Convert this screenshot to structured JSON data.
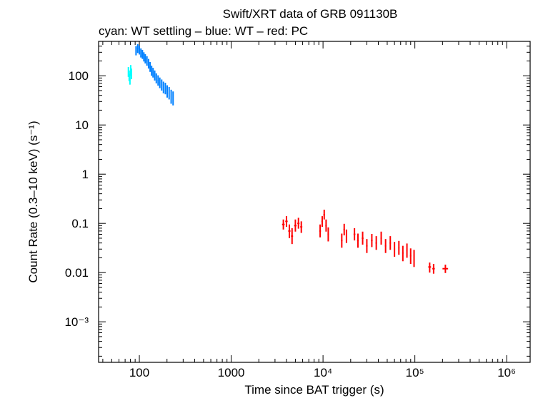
{
  "chart_data": {
    "type": "scatter",
    "title": "Swift/XRT data of GRB 091130B",
    "subtitle": "cyan: WT settling – blue: WT – red: PC",
    "xlabel": "Time since BAT trigger (s)",
    "ylabel": "Count Rate (0.3–10 keV) (s⁻¹)",
    "xscale": "log",
    "yscale": "log",
    "xlim": [
      36,
      1800000
    ],
    "ylim": [
      0.00015,
      500
    ],
    "x_ticks": [
      {
        "value": 100,
        "label": "100"
      },
      {
        "value": 1000,
        "label": "1000"
      },
      {
        "value": 10000,
        "label": "10⁴"
      },
      {
        "value": 100000,
        "label": "10⁵"
      },
      {
        "value": 1000000,
        "label": "10⁶"
      }
    ],
    "y_ticks": [
      {
        "value": 100,
        "label": "100"
      },
      {
        "value": 10,
        "label": "10"
      },
      {
        "value": 1,
        "label": "1"
      },
      {
        "value": 0.1,
        "label": "0.1"
      },
      {
        "value": 0.01,
        "label": "0.01"
      },
      {
        "value": 0.001,
        "label": "10⁻³"
      }
    ],
    "grid": false,
    "series": [
      {
        "name": "WT settling",
        "color": "#00ffff",
        "points": [
          {
            "x": 76,
            "y": 120,
            "xerr": 1,
            "ylo": 95,
            "yhi": 150
          },
          {
            "x": 77.5,
            "y": 100,
            "xerr": 1,
            "ylo": 78,
            "yhi": 128
          },
          {
            "x": 79,
            "y": 85,
            "xerr": 1,
            "ylo": 66,
            "yhi": 110
          },
          {
            "x": 80.5,
            "y": 130,
            "xerr": 1,
            "ylo": 100,
            "yhi": 165
          },
          {
            "x": 82,
            "y": 110,
            "xerr": 1,
            "ylo": 85,
            "yhi": 140
          }
        ]
      },
      {
        "name": "WT",
        "color": "#0080ff",
        "points": [
          {
            "x": 92,
            "y": 320,
            "xerr": 1.5,
            "ylo": 260,
            "yhi": 400
          },
          {
            "x": 96,
            "y": 360,
            "xerr": 1.5,
            "ylo": 290,
            "yhi": 440
          },
          {
            "x": 100,
            "y": 330,
            "xerr": 1.5,
            "ylo": 270,
            "yhi": 410
          },
          {
            "x": 104,
            "y": 290,
            "xerr": 1.5,
            "ylo": 235,
            "yhi": 360
          },
          {
            "x": 108,
            "y": 270,
            "xerr": 1.5,
            "ylo": 220,
            "yhi": 335
          },
          {
            "x": 112,
            "y": 240,
            "xerr": 1.5,
            "ylo": 195,
            "yhi": 300
          },
          {
            "x": 116,
            "y": 220,
            "xerr": 2,
            "ylo": 178,
            "yhi": 275
          },
          {
            "x": 121,
            "y": 200,
            "xerr": 2,
            "ylo": 160,
            "yhi": 250
          },
          {
            "x": 126,
            "y": 175,
            "xerr": 2,
            "ylo": 140,
            "yhi": 220
          },
          {
            "x": 131,
            "y": 150,
            "xerr": 2,
            "ylo": 120,
            "yhi": 190
          },
          {
            "x": 136,
            "y": 125,
            "xerr": 2,
            "ylo": 100,
            "yhi": 160
          },
          {
            "x": 141,
            "y": 115,
            "xerr": 2,
            "ylo": 92,
            "yhi": 145
          },
          {
            "x": 147,
            "y": 100,
            "xerr": 2,
            "ylo": 80,
            "yhi": 128
          },
          {
            "x": 153,
            "y": 88,
            "xerr": 2,
            "ylo": 70,
            "yhi": 112
          },
          {
            "x": 160,
            "y": 80,
            "xerr": 2.5,
            "ylo": 63,
            "yhi": 102
          },
          {
            "x": 167,
            "y": 72,
            "xerr": 2.5,
            "ylo": 56,
            "yhi": 92
          },
          {
            "x": 175,
            "y": 65,
            "xerr": 2.5,
            "ylo": 50,
            "yhi": 84
          },
          {
            "x": 183,
            "y": 58,
            "xerr": 2.5,
            "ylo": 44,
            "yhi": 76
          },
          {
            "x": 192,
            "y": 55,
            "xerr": 3,
            "ylo": 42,
            "yhi": 72
          },
          {
            "x": 201,
            "y": 48,
            "xerr": 3,
            "ylo": 36,
            "yhi": 64
          },
          {
            "x": 211,
            "y": 44,
            "xerr": 3,
            "ylo": 33,
            "yhi": 59
          },
          {
            "x": 222,
            "y": 38,
            "xerr": 3,
            "ylo": 27,
            "yhi": 52
          },
          {
            "x": 233,
            "y": 35,
            "xerr": 3,
            "ylo": 25,
            "yhi": 48
          }
        ]
      },
      {
        "name": "PC",
        "color": "#ff0000",
        "points": [
          {
            "x": 3700,
            "y": 0.095,
            "xerr": 120,
            "ylo": 0.075,
            "yhi": 0.12
          },
          {
            "x": 4000,
            "y": 0.11,
            "xerr": 120,
            "ylo": 0.085,
            "yhi": 0.14
          },
          {
            "x": 4300,
            "y": 0.07,
            "xerr": 120,
            "ylo": 0.05,
            "yhi": 0.095
          },
          {
            "x": 4600,
            "y": 0.055,
            "xerr": 120,
            "ylo": 0.038,
            "yhi": 0.08
          },
          {
            "x": 5000,
            "y": 0.09,
            "xerr": 150,
            "ylo": 0.068,
            "yhi": 0.12
          },
          {
            "x": 5400,
            "y": 0.1,
            "xerr": 150,
            "ylo": 0.078,
            "yhi": 0.13
          },
          {
            "x": 5800,
            "y": 0.085,
            "xerr": 150,
            "ylo": 0.064,
            "yhi": 0.11
          },
          {
            "x": 9300,
            "y": 0.07,
            "xerr": 200,
            "ylo": 0.052,
            "yhi": 0.095
          },
          {
            "x": 9800,
            "y": 0.11,
            "xerr": 200,
            "ylo": 0.085,
            "yhi": 0.14
          },
          {
            "x": 10300,
            "y": 0.15,
            "xerr": 200,
            "ylo": 0.12,
            "yhi": 0.19
          },
          {
            "x": 10800,
            "y": 0.09,
            "xerr": 200,
            "ylo": 0.068,
            "yhi": 0.12
          },
          {
            "x": 11400,
            "y": 0.06,
            "xerr": 200,
            "ylo": 0.043,
            "yhi": 0.083
          },
          {
            "x": 16000,
            "y": 0.045,
            "xerr": 300,
            "ylo": 0.032,
            "yhi": 0.062
          },
          {
            "x": 17000,
            "y": 0.075,
            "xerr": 300,
            "ylo": 0.057,
            "yhi": 0.098
          },
          {
            "x": 18000,
            "y": 0.055,
            "xerr": 300,
            "ylo": 0.04,
            "yhi": 0.075
          },
          {
            "x": 22000,
            "y": 0.06,
            "xerr": 500,
            "ylo": 0.045,
            "yhi": 0.08
          },
          {
            "x": 24000,
            "y": 0.045,
            "xerr": 500,
            "ylo": 0.032,
            "yhi": 0.062
          },
          {
            "x": 27000,
            "y": 0.05,
            "xerr": 600,
            "ylo": 0.037,
            "yhi": 0.068
          },
          {
            "x": 30000,
            "y": 0.035,
            "xerr": 600,
            "ylo": 0.025,
            "yhi": 0.048
          },
          {
            "x": 34000,
            "y": 0.045,
            "xerr": 700,
            "ylo": 0.033,
            "yhi": 0.061
          },
          {
            "x": 38000,
            "y": 0.04,
            "xerr": 700,
            "ylo": 0.029,
            "yhi": 0.055
          },
          {
            "x": 43000,
            "y": 0.05,
            "xerr": 800,
            "ylo": 0.037,
            "yhi": 0.068
          },
          {
            "x": 48000,
            "y": 0.035,
            "xerr": 800,
            "ylo": 0.025,
            "yhi": 0.048
          },
          {
            "x": 54000,
            "y": 0.04,
            "xerr": 900,
            "ylo": 0.029,
            "yhi": 0.055
          },
          {
            "x": 60000,
            "y": 0.03,
            "xerr": 1000,
            "ylo": 0.021,
            "yhi": 0.042
          },
          {
            "x": 67000,
            "y": 0.032,
            "xerr": 1000,
            "ylo": 0.023,
            "yhi": 0.044
          },
          {
            "x": 74000,
            "y": 0.025,
            "xerr": 1200,
            "ylo": 0.017,
            "yhi": 0.035
          },
          {
            "x": 82000,
            "y": 0.028,
            "xerr": 1200,
            "ylo": 0.02,
            "yhi": 0.039
          },
          {
            "x": 90000,
            "y": 0.022,
            "xerr": 1500,
            "ylo": 0.015,
            "yhi": 0.031
          },
          {
            "x": 98000,
            "y": 0.02,
            "xerr": 1500,
            "ylo": 0.013,
            "yhi": 0.029
          },
          {
            "x": 145000,
            "y": 0.013,
            "xerr": 5000,
            "ylo": 0.01,
            "yhi": 0.016
          },
          {
            "x": 160000,
            "y": 0.012,
            "xerr": 5000,
            "ylo": 0.0095,
            "yhi": 0.015
          },
          {
            "x": 215000,
            "y": 0.012,
            "xerr": 15000,
            "ylo": 0.0098,
            "yhi": 0.0145
          }
        ]
      }
    ]
  }
}
